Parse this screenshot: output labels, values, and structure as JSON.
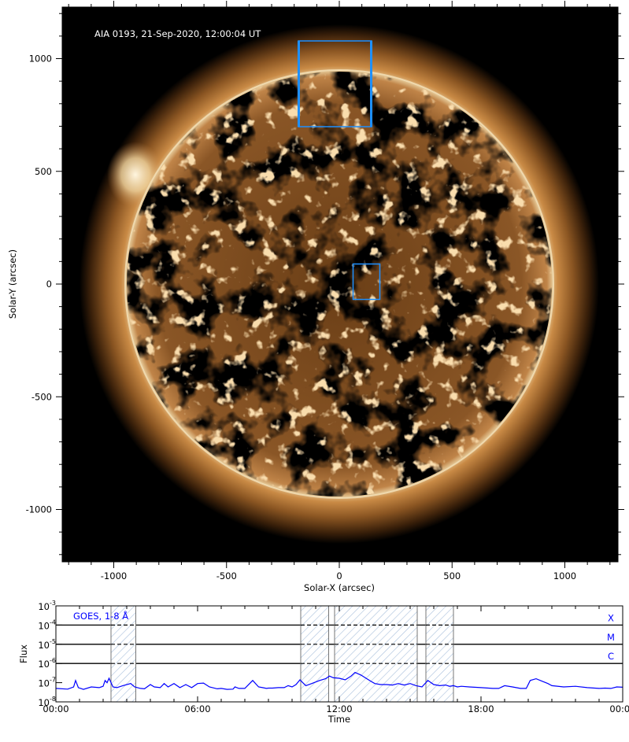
{
  "chart_data": [
    {
      "type": "image",
      "title": "AIA 0193, 21-Sep-2020, 12:00:04 UT",
      "xlabel": "Solar-X (arcsec)",
      "ylabel": "Solar-Y (arcsec)",
      "xlim": [
        -1240,
        1230
      ],
      "ylim": [
        -1240,
        1230
      ],
      "xticks": [
        -1000,
        -500,
        0,
        500,
        1000
      ],
      "yticks": [
        1000,
        500,
        0,
        -500,
        -1000
      ],
      "xtick_labels": [
        "-1000",
        "-500",
        "0",
        "500",
        "1000"
      ],
      "ytick_labels": [
        "1000",
        "500",
        "0",
        "-500",
        "-1000"
      ],
      "solar_radius_arcsec": 950,
      "colors": {
        "box": "#1e90ff",
        "limb": "#f5e6c8",
        "disk": "#7a4a1c",
        "background": "#000000"
      },
      "boxes": [
        {
          "x": [
            -185,
            147
          ],
          "y": [
            700,
            1080
          ]
        },
        {
          "x": [
            60,
            182
          ],
          "y": [
            -70,
            91
          ]
        }
      ]
    },
    {
      "type": "line",
      "title": "GOES, 1-8 Å",
      "xlabel": "Time",
      "ylabel": "Flux",
      "yscale": "log",
      "ylim": [
        1e-08,
        0.001
      ],
      "xlim": [
        "00:00",
        "24:00"
      ],
      "xtick_labels": [
        "00:00",
        "06:00",
        "12:00",
        "18:00",
        "00:00"
      ],
      "ytick_labels": [
        {
          "base": "10",
          "exp": "-3"
        },
        {
          "base": "10",
          "exp": "-4"
        },
        {
          "base": "10",
          "exp": "-5"
        },
        {
          "base": "10",
          "exp": "-6"
        },
        {
          "base": "10",
          "exp": "-7"
        },
        {
          "base": "10",
          "exp": "-8"
        }
      ],
      "flare_classes": [
        {
          "label": "X",
          "flux": 0.0001
        },
        {
          "label": "M",
          "flux": 1e-05
        },
        {
          "label": "C",
          "flux": 1e-06
        }
      ],
      "shaded_intervals": [
        [
          "02:20",
          "03:23"
        ],
        [
          "10:22",
          "11:33"
        ],
        [
          "11:48",
          "15:18"
        ],
        [
          "15:40",
          "16:50"
        ]
      ],
      "color": "#0000ff",
      "series": [
        {
          "x": [
            "00:00",
            "00:30",
            "00:45",
            "00:50",
            "00:57",
            "01:10",
            "01:30",
            "01:50",
            "02:00",
            "02:05",
            "02:10",
            "02:15",
            "02:25",
            "02:35",
            "02:50",
            "03:10",
            "03:20",
            "03:35",
            "03:45",
            "04:00",
            "04:10",
            "04:25",
            "04:35",
            "04:45",
            "05:00",
            "05:15",
            "05:30",
            "05:45",
            "06:00",
            "06:15",
            "06:30",
            "06:50",
            "07:00",
            "07:15",
            "07:30",
            "07:35",
            "07:45",
            "08:00",
            "08:20",
            "08:35",
            "08:45",
            "08:55",
            "09:00",
            "09:10",
            "09:25",
            "09:40",
            "09:50",
            "10:00",
            "10:10",
            "10:20",
            "10:35",
            "10:50",
            "11:10",
            "11:25",
            "11:35",
            "11:45",
            "12:00",
            "12:15",
            "12:30",
            "12:40",
            "12:55",
            "13:10",
            "13:20",
            "13:30",
            "13:45",
            "14:00",
            "14:15",
            "14:30",
            "14:45",
            "15:00",
            "15:15",
            "15:30",
            "15:45",
            "16:00",
            "16:15",
            "16:30",
            "16:40",
            "16:50",
            "17:00",
            "17:10",
            "17:30",
            "18:00",
            "18:30",
            "18:45",
            "19:00",
            "19:20",
            "19:40",
            "19:55",
            "20:05",
            "20:20",
            "20:35",
            "20:50",
            "21:00",
            "21:30",
            "22:00",
            "22:30",
            "23:00",
            "23:15",
            "23:30",
            "23:45",
            "24:00"
          ],
          "y": [
            5e-08,
            4.6e-08,
            6e-08,
            1.3e-07,
            5.5e-08,
            4.5e-08,
            6e-08,
            5.5e-08,
            6.5e-08,
            1.3e-07,
            1e-07,
            1.7e-07,
            6e-08,
            5.5e-08,
            7e-08,
            9e-08,
            6e-08,
            5e-08,
            4.8e-08,
            8e-08,
            6e-08,
            5.5e-08,
            9e-08,
            6e-08,
            9e-08,
            5.5e-08,
            8e-08,
            5.5e-08,
            9e-08,
            9.5e-08,
            6e-08,
            4.8e-08,
            5e-08,
            4.5e-08,
            4.6e-08,
            6e-08,
            5e-08,
            5e-08,
            1.3e-07,
            6e-08,
            5.5e-08,
            5e-08,
            5.2e-08,
            5.2e-08,
            5.5e-08,
            5.5e-08,
            7e-08,
            6e-08,
            8e-08,
            1.4e-07,
            7e-08,
            9e-08,
            1.3e-07,
            1.6e-07,
            2.2e-07,
            1.8e-07,
            1.7e-07,
            1.4e-07,
            2.2e-07,
            3.4e-07,
            2.5e-07,
            1.6e-07,
            1.2e-07,
            9e-08,
            8e-08,
            8e-08,
            7.5e-08,
            9e-08,
            7.5e-08,
            9e-08,
            7e-08,
            6e-08,
            1.3e-07,
            8e-08,
            7e-08,
            7.5e-08,
            6.5e-08,
            7e-08,
            6e-08,
            6.5e-08,
            6e-08,
            5.5e-08,
            5e-08,
            5e-08,
            7e-08,
            6e-08,
            5e-08,
            5e-08,
            1.3e-07,
            1.6e-07,
            1.2e-07,
            9e-08,
            7e-08,
            6e-08,
            6.5e-08,
            5.5e-08,
            5e-08,
            5.2e-08,
            5e-08,
            6e-08,
            5.8e-08
          ]
        }
      ]
    }
  ]
}
